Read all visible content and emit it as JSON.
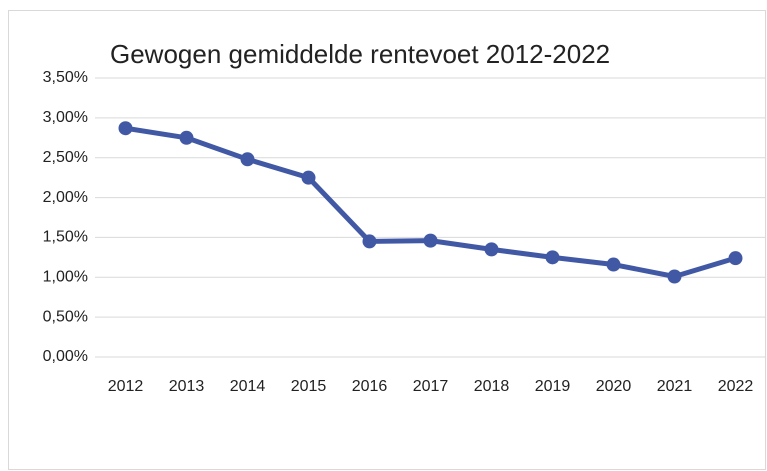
{
  "chart_data": {
    "type": "line",
    "title": "Gewogen gemiddelde rentevoet 2012-2022",
    "categories": [
      "2012",
      "2013",
      "2014",
      "2015",
      "2016",
      "2017",
      "2018",
      "2019",
      "2020",
      "2021",
      "2022"
    ],
    "series": [
      {
        "name": "Gewogen gemiddelde rentevoet",
        "color": "#4159a5",
        "values": [
          2.87,
          2.75,
          2.48,
          2.25,
          1.45,
          1.46,
          1.35,
          1.25,
          1.16,
          1.01,
          1.24
        ]
      }
    ],
    "ylim": [
      0,
      3.5
    ],
    "yticks": [
      {
        "value": 0,
        "label": "0,00%"
      },
      {
        "value": 0.5,
        "label": "0,50%"
      },
      {
        "value": 1,
        "label": "1,00%"
      },
      {
        "value": 1.5,
        "label": "1,50%"
      },
      {
        "value": 2,
        "label": "2,00%"
      },
      {
        "value": 2.5,
        "label": "2,50%"
      },
      {
        "value": 3,
        "label": "3,00%"
      },
      {
        "value": 3.5,
        "label": "3,50%"
      }
    ],
    "grid": true,
    "legend": false
  }
}
